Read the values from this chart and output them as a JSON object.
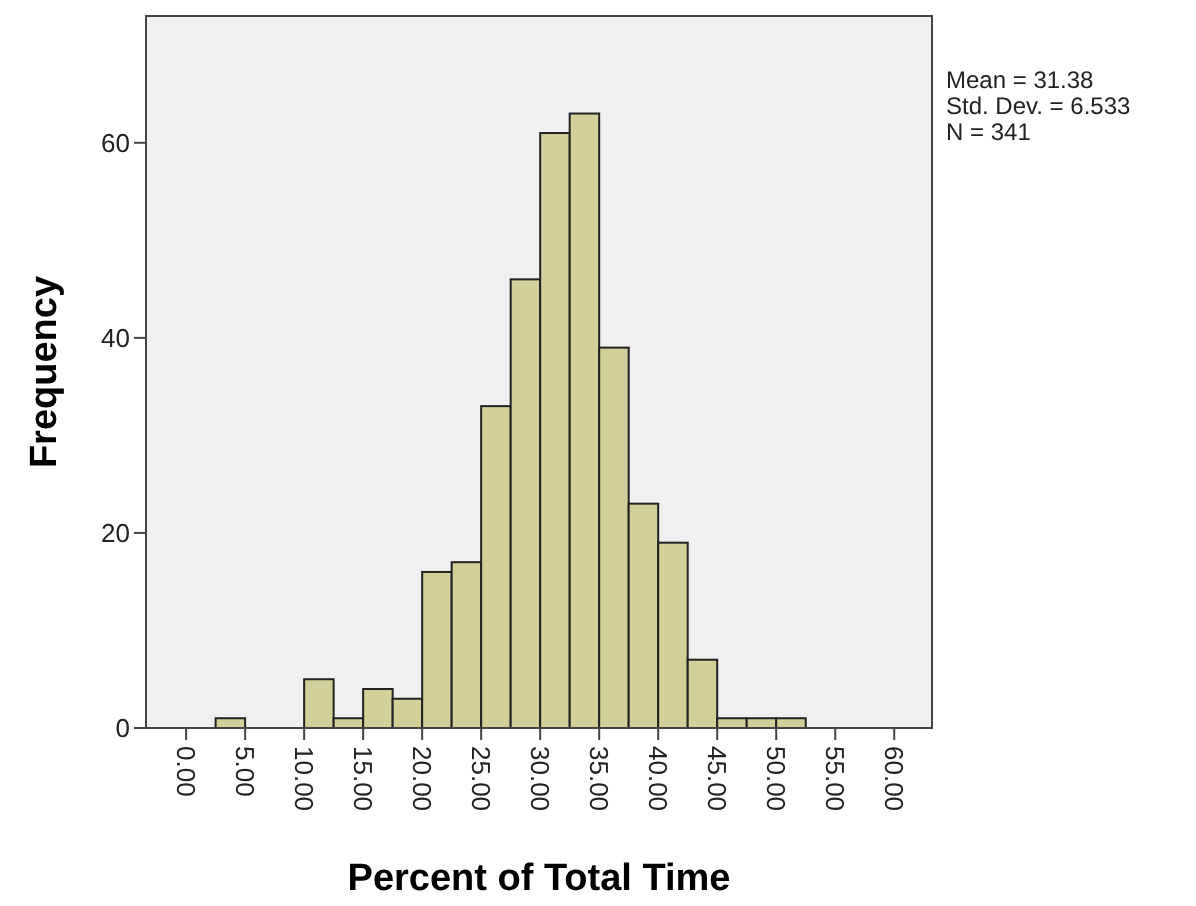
{
  "chart_data": {
    "type": "histogram",
    "xlabel": "Percent of Total Time",
    "ylabel": "Frequency",
    "bins": [
      2.5,
      5,
      7.5,
      10,
      12.5,
      15,
      17.5,
      20,
      22.5,
      25,
      27.5,
      30,
      32.5,
      35,
      37.5,
      40,
      42.5,
      45,
      47.5,
      50,
      52.5
    ],
    "values": [
      1,
      0,
      0,
      5,
      1,
      4,
      3,
      16,
      17,
      33,
      46,
      61,
      63,
      39,
      23,
      19,
      7,
      1,
      1,
      1
    ],
    "color": "#d3cf98",
    "xlim": [
      -3.4,
      63.2
    ],
    "ylim": [
      0,
      73
    ],
    "xticks": [
      {
        "value": 0,
        "label": "0.00"
      },
      {
        "value": 5,
        "label": "5.00"
      },
      {
        "value": 10,
        "label": "10.00"
      },
      {
        "value": 15,
        "label": "15.00"
      },
      {
        "value": 20,
        "label": "20.00"
      },
      {
        "value": 25,
        "label": "25.00"
      },
      {
        "value": 30,
        "label": "30.00"
      },
      {
        "value": 35,
        "label": "35.00"
      },
      {
        "value": 40,
        "label": "40.00"
      },
      {
        "value": 45,
        "label": "45.00"
      },
      {
        "value": 50,
        "label": "50.00"
      },
      {
        "value": 55,
        "label": "55.00"
      },
      {
        "value": 60,
        "label": "60.00"
      }
    ],
    "yticks": [
      0,
      20,
      40,
      60
    ],
    "annotations": [
      "Mean = 31.38",
      "Std. Dev. = 6.533",
      "N = 341"
    ]
  }
}
